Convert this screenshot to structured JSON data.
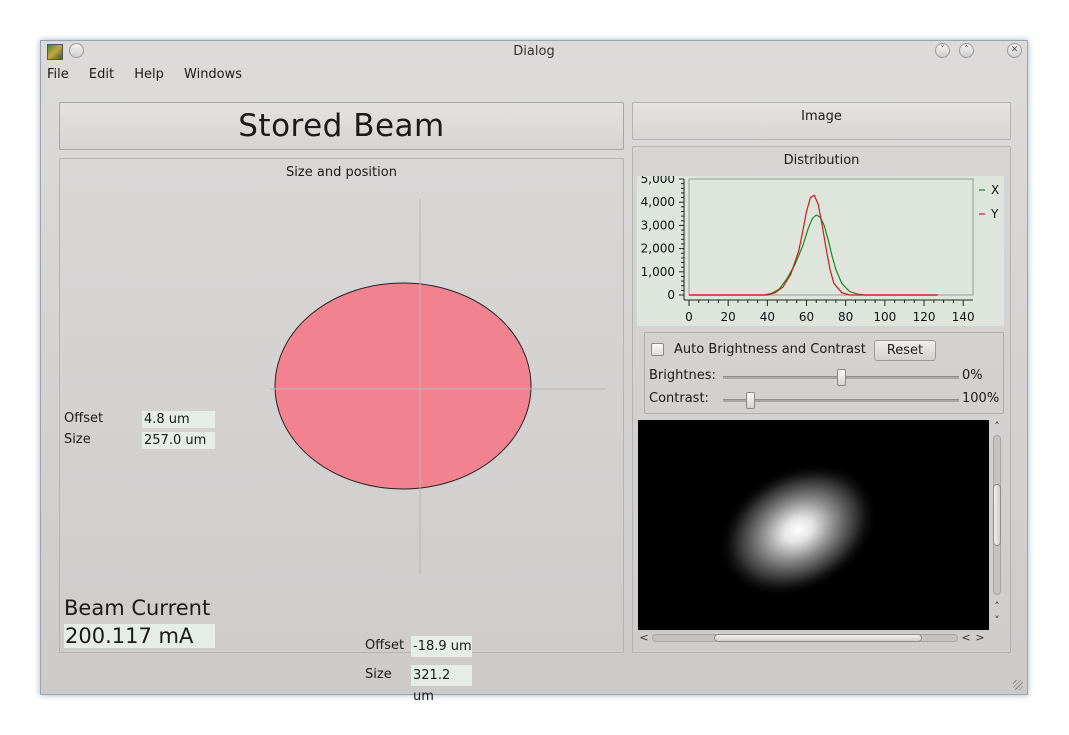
{
  "window": {
    "title": "Dialog"
  },
  "menu": [
    "File",
    "Edit",
    "Help",
    "Windows"
  ],
  "panel_title": "Stored Beam",
  "size_group": {
    "label": "Size and position",
    "left_offset_label": "Offset",
    "left_offset_value": "4.8 um",
    "left_size_label": "Size",
    "left_size_value": "257.0 um",
    "bottom_offset_label": "Offset",
    "bottom_offset_value": "-18.9 um",
    "bottom_size_label": "Size",
    "bottom_size_value": "321.2 um",
    "beam_color": "#f2828f"
  },
  "beam_current": {
    "label": "Beam Current",
    "value": "200.117 mA"
  },
  "image_tab": {
    "label": "Image"
  },
  "distribution": {
    "label": "Distribution",
    "auto_label": "Auto Brightness and Contrast",
    "auto_checked": false,
    "reset_label": "Reset",
    "brightness_label": "Brightnes:",
    "brightness_value": "0%",
    "brightness_level": 0.5,
    "contrast_label": "Contrast:",
    "contrast_value": "100%",
    "contrast_level": 0.1
  },
  "chart_data": {
    "type": "line",
    "xlim": [
      0,
      145
    ],
    "ylim": [
      0,
      5000
    ],
    "xticks": [
      "0",
      "20",
      "40",
      "60",
      "80",
      "100",
      "120",
      "140"
    ],
    "yticks": [
      "0",
      "1,000",
      "2,000",
      "3,000",
      "4,000",
      "5,000"
    ],
    "legend": "right",
    "grid": false,
    "series": [
      {
        "name": "X",
        "color": "#1a8a1a",
        "x": [
          0,
          38,
          42,
          46,
          50,
          54,
          58,
          61,
          63,
          65,
          67,
          69,
          71,
          73,
          75,
          78,
          82,
          86,
          90,
          100,
          127
        ],
        "y": [
          0,
          0,
          60,
          250,
          700,
          1300,
          2100,
          2900,
          3300,
          3450,
          3350,
          3000,
          2400,
          1700,
          1100,
          500,
          150,
          40,
          0,
          0,
          0
        ]
      },
      {
        "name": "Y",
        "color": "#cc1a1a",
        "x": [
          0,
          40,
          44,
          48,
          52,
          56,
          58,
          60,
          62,
          64,
          66,
          68,
          70,
          72,
          74,
          78,
          82,
          86,
          127
        ],
        "y": [
          0,
          0,
          100,
          350,
          900,
          1900,
          2700,
          3600,
          4200,
          4300,
          3900,
          3000,
          2000,
          1100,
          500,
          100,
          0,
          0,
          0
        ]
      }
    ]
  }
}
